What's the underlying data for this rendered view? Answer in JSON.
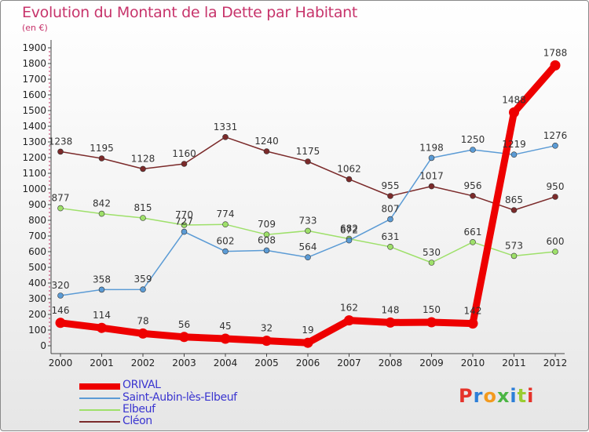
{
  "title": "Evolution du Montant de la Dette par Habitant",
  "unit": "(en €)",
  "logo": "Proxiti",
  "colors": {
    "title": "#c7346b",
    "orival": "#ee0000",
    "saint_aubin": "#5b9bd5",
    "elbeuf": "#9ee06a",
    "cleon": "#7b2a2a",
    "legend_text": "#3a35d0"
  },
  "chart_data": {
    "type": "line",
    "title": "Evolution du Montant de la Dette par Habitant",
    "ylabel": "(en €)",
    "xlabel": "",
    "ylim": [
      0,
      1900
    ],
    "yticks": [
      0,
      100,
      200,
      300,
      400,
      500,
      600,
      700,
      800,
      900,
      1000,
      1100,
      1200,
      1300,
      1400,
      1500,
      1600,
      1700,
      1800,
      1900
    ],
    "x": [
      "2000",
      "2001",
      "2002",
      "2003",
      "2004",
      "2005",
      "2006",
      "2007",
      "2008",
      "2009",
      "2010",
      "2011",
      "2012"
    ],
    "grid": false,
    "legend_position": "bottom-left",
    "series": [
      {
        "name": "ORIVAL",
        "color": "#ee0000",
        "values": [
          146,
          114,
          78,
          56,
          45,
          32,
          19,
          162,
          148,
          150,
          142,
          1488,
          1788
        ]
      },
      {
        "name": "Saint-Aubin-lès-Elbeuf",
        "color": "#5b9bd5",
        "values": [
          320,
          358,
          359,
          727,
          602,
          608,
          564,
          672,
          807,
          1198,
          1250,
          1219,
          1276
        ]
      },
      {
        "name": "Elbeuf",
        "color": "#9ee06a",
        "values": [
          877,
          842,
          815,
          770,
          774,
          709,
          733,
          682,
          631,
          530,
          661,
          573,
          600
        ]
      },
      {
        "name": "Cléon",
        "color": "#7b2a2a",
        "values": [
          1238,
          1195,
          1128,
          1160,
          1331,
          1240,
          1175,
          1062,
          955,
          1017,
          956,
          865,
          950
        ]
      }
    ]
  }
}
